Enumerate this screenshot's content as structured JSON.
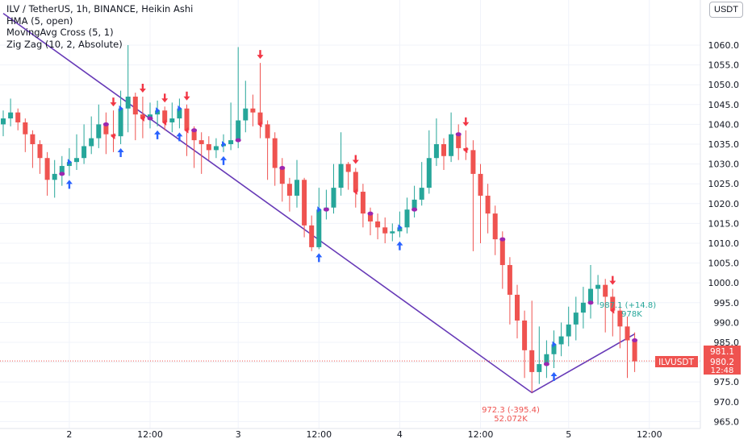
{
  "legend": {
    "title": "ILV / TetherUS, 1h, BINANCE, Heikin Ashi",
    "indicators": [
      "HMA (5, open)",
      "MovingAvg Cross (5, 1)",
      "Zig Zag (10, 2, Absolute)"
    ]
  },
  "currency": "USDT",
  "colors": {
    "up": "#26a69a",
    "down": "#ef5350",
    "zigzag": "#673ab7",
    "cross_up": "#2962ff",
    "cross_down": "#f23645",
    "hma": "#9c27b0",
    "grid": "#f0f3fa",
    "last_price_line": "#ef5350"
  },
  "price_axis": {
    "ticks": [
      "1060.0",
      "1055.0",
      "1050.0",
      "1045.0",
      "1040.0",
      "1035.0",
      "1030.0",
      "1025.0",
      "1020.0",
      "1015.0",
      "1010.0",
      "1005.0",
      "1000.0",
      "995.0",
      "990.0",
      "985.0",
      "980.0",
      "975.0",
      "970.0",
      "965.0"
    ]
  },
  "time_axis": {
    "ticks": [
      "2",
      "12:00",
      "3",
      "12:00",
      "4",
      "12:00",
      "5",
      "12:00"
    ]
  },
  "price_badge": {
    "high": "981.1",
    "price": "980.2",
    "countdown": "12:48",
    "symbol": "ILVUSDT"
  },
  "zigzag_labels": {
    "low_price": "972.3 (-395.4)",
    "low_volume": "52.072K",
    "high_price": "987.1 (+14.8)",
    "high_volume": "978K"
  },
  "chart_data": {
    "type": "candlestick",
    "symbol": "ILV / TetherUS",
    "interval": "1h",
    "exchange": "BINANCE",
    "style": "Heikin Ashi",
    "ylim": [
      963,
      1068
    ],
    "x_tick_labels": [
      "2",
      "12:00",
      "3",
      "12:00",
      "4",
      "12:00",
      "5",
      "12:00"
    ],
    "candles": [
      {
        "o": 1040.0,
        "c": 1041.5,
        "h": 1043.5,
        "l": 1037.0
      },
      {
        "o": 1041.5,
        "c": 1043.0,
        "h": 1046.5,
        "l": 1039.5
      },
      {
        "o": 1043.0,
        "c": 1040.5,
        "h": 1044.0,
        "l": 1038.5
      },
      {
        "o": 1040.5,
        "c": 1037.5,
        "h": 1041.5,
        "l": 1033.0
      },
      {
        "o": 1037.5,
        "c": 1035.0,
        "h": 1038.5,
        "l": 1029.0
      },
      {
        "o": 1035.0,
        "c": 1031.5,
        "h": 1036.0,
        "l": 1027.5
      },
      {
        "o": 1031.5,
        "c": 1026.0,
        "h": 1033.0,
        "l": 1022.0
      },
      {
        "o": 1026.0,
        "c": 1027.5,
        "h": 1031.0,
        "l": 1021.5
      },
      {
        "o": 1027.5,
        "c": 1029.5,
        "h": 1032.0,
        "l": 1024.5
      },
      {
        "o": 1029.5,
        "c": 1030.5,
        "h": 1034.0,
        "l": 1027.0
      },
      {
        "o": 1030.5,
        "c": 1031.5,
        "h": 1037.5,
        "l": 1028.5
      },
      {
        "o": 1031.5,
        "c": 1034.5,
        "h": 1040.0,
        "l": 1030.0
      },
      {
        "o": 1034.5,
        "c": 1036.5,
        "h": 1042.0,
        "l": 1032.5
      },
      {
        "o": 1036.5,
        "c": 1040.0,
        "h": 1045.0,
        "l": 1034.0
      },
      {
        "o": 1040.0,
        "c": 1037.5,
        "h": 1043.0,
        "l": 1032.5
      },
      {
        "o": 1037.5,
        "c": 1037.0,
        "h": 1043.5,
        "l": 1033.0
      },
      {
        "o": 1037.0,
        "c": 1044.0,
        "h": 1048.5,
        "l": 1035.0
      },
      {
        "o": 1044.0,
        "c": 1047.0,
        "h": 1060.0,
        "l": 1038.0
      },
      {
        "o": 1047.0,
        "c": 1042.5,
        "h": 1048.0,
        "l": 1036.0
      },
      {
        "o": 1042.5,
        "c": 1041.5,
        "h": 1047.0,
        "l": 1036.5
      },
      {
        "o": 1041.5,
        "c": 1042.5,
        "h": 1045.5,
        "l": 1039.0
      },
      {
        "o": 1042.5,
        "c": 1043.5,
        "h": 1046.0,
        "l": 1039.5
      },
      {
        "o": 1043.5,
        "c": 1040.5,
        "h": 1044.5,
        "l": 1038.5
      },
      {
        "o": 1040.5,
        "c": 1041.5,
        "h": 1045.5,
        "l": 1038.0
      },
      {
        "o": 1041.5,
        "c": 1044.0,
        "h": 1046.5,
        "l": 1039.0
      },
      {
        "o": 1044.0,
        "c": 1038.5,
        "h": 1045.0,
        "l": 1032.0
      },
      {
        "o": 1038.5,
        "c": 1036.0,
        "h": 1039.5,
        "l": 1029.0
      },
      {
        "o": 1036.0,
        "c": 1035.0,
        "h": 1038.0,
        "l": 1027.5
      },
      {
        "o": 1035.0,
        "c": 1033.5,
        "h": 1037.0,
        "l": 1031.0
      },
      {
        "o": 1033.5,
        "c": 1034.5,
        "h": 1036.5,
        "l": 1031.5
      },
      {
        "o": 1034.5,
        "c": 1035.0,
        "h": 1037.5,
        "l": 1033.0
      },
      {
        "o": 1035.0,
        "c": 1036.0,
        "h": 1045.5,
        "l": 1033.5
      },
      {
        "o": 1036.0,
        "c": 1041.0,
        "h": 1059.5,
        "l": 1034.0
      },
      {
        "o": 1041.0,
        "c": 1044.0,
        "h": 1051.0,
        "l": 1038.0
      },
      {
        "o": 1044.0,
        "c": 1043.0,
        "h": 1047.5,
        "l": 1039.5
      },
      {
        "o": 1043.0,
        "c": 1040.0,
        "h": 1055.5,
        "l": 1036.5
      },
      {
        "o": 1040.0,
        "c": 1036.5,
        "h": 1041.0,
        "l": 1026.0
      },
      {
        "o": 1036.5,
        "c": 1029.0,
        "h": 1038.0,
        "l": 1024.5
      },
      {
        "o": 1029.0,
        "c": 1025.0,
        "h": 1031.5,
        "l": 1020.5
      },
      {
        "o": 1025.0,
        "c": 1022.0,
        "h": 1026.5,
        "l": 1018.0
      },
      {
        "o": 1022.0,
        "c": 1026.0,
        "h": 1031.0,
        "l": 1019.0
      },
      {
        "o": 1026.0,
        "c": 1014.5,
        "h": 1026.5,
        "l": 1011.5
      },
      {
        "o": 1014.5,
        "c": 1009.0,
        "h": 1017.0,
        "l": 1008.0
      },
      {
        "o": 1009.0,
        "c": 1018.5,
        "h": 1024.0,
        "l": 1008.5
      },
      {
        "o": 1018.5,
        "c": 1019.0,
        "h": 1023.5,
        "l": 1016.0
      },
      {
        "o": 1019.0,
        "c": 1024.0,
        "h": 1030.0,
        "l": 1017.5
      },
      {
        "o": 1024.0,
        "c": 1030.0,
        "h": 1038.0,
        "l": 1022.0
      },
      {
        "o": 1030.0,
        "c": 1028.0,
        "h": 1030.5,
        "l": 1023.5
      },
      {
        "o": 1028.0,
        "c": 1023.0,
        "h": 1029.0,
        "l": 1019.0
      },
      {
        "o": 1023.0,
        "c": 1017.5,
        "h": 1025.0,
        "l": 1014.0
      },
      {
        "o": 1017.5,
        "c": 1015.5,
        "h": 1019.0,
        "l": 1012.0
      },
      {
        "o": 1015.5,
        "c": 1014.0,
        "h": 1017.5,
        "l": 1011.0
      },
      {
        "o": 1014.0,
        "c": 1012.5,
        "h": 1016.5,
        "l": 1010.0
      },
      {
        "o": 1012.5,
        "c": 1013.0,
        "h": 1015.0,
        "l": 1010.5
      },
      {
        "o": 1013.0,
        "c": 1014.0,
        "h": 1018.0,
        "l": 1011.5
      },
      {
        "o": 1014.0,
        "c": 1018.5,
        "h": 1021.5,
        "l": 1012.5
      },
      {
        "o": 1018.5,
        "c": 1021.0,
        "h": 1024.5,
        "l": 1016.5
      },
      {
        "o": 1021.0,
        "c": 1024.0,
        "h": 1030.5,
        "l": 1019.5
      },
      {
        "o": 1024.0,
        "c": 1031.5,
        "h": 1038.5,
        "l": 1022.5
      },
      {
        "o": 1031.5,
        "c": 1035.0,
        "h": 1041.5,
        "l": 1029.5
      },
      {
        "o": 1035.0,
        "c": 1032.0,
        "h": 1036.5,
        "l": 1028.5
      },
      {
        "o": 1032.0,
        "c": 1037.5,
        "h": 1043.0,
        "l": 1030.5
      },
      {
        "o": 1037.5,
        "c": 1034.0,
        "h": 1040.0,
        "l": 1031.0
      },
      {
        "o": 1034.0,
        "c": 1033.5,
        "h": 1038.5,
        "l": 1031.0
      },
      {
        "o": 1033.5,
        "c": 1027.5,
        "h": 1036.0,
        "l": 1008.0
      },
      {
        "o": 1027.5,
        "c": 1022.0,
        "h": 1030.0,
        "l": 1010.0
      },
      {
        "o": 1022.0,
        "c": 1017.5,
        "h": 1025.0,
        "l": 1012.5
      },
      {
        "o": 1017.5,
        "c": 1011.0,
        "h": 1019.5,
        "l": 1007.0
      },
      {
        "o": 1011.0,
        "c": 1004.5,
        "h": 1013.0,
        "l": 998.5
      },
      {
        "o": 1004.5,
        "c": 997.0,
        "h": 1006.5,
        "l": 989.5
      },
      {
        "o": 997.0,
        "c": 990.5,
        "h": 999.5,
        "l": 986.0
      },
      {
        "o": 990.5,
        "c": 983.0,
        "h": 993.0,
        "l": 976.0
      },
      {
        "o": 983.0,
        "c": 977.5,
        "h": 995.5,
        "l": 972.3
      },
      {
        "o": 977.5,
        "c": 979.5,
        "h": 989.0,
        "l": 974.5
      },
      {
        "o": 979.5,
        "c": 982.0,
        "h": 985.5,
        "l": 976.0
      },
      {
        "o": 982.0,
        "c": 984.5,
        "h": 988.0,
        "l": 978.5
      },
      {
        "o": 984.5,
        "c": 986.5,
        "h": 990.0,
        "l": 981.5
      },
      {
        "o": 986.5,
        "c": 989.5,
        "h": 994.0,
        "l": 984.0
      },
      {
        "o": 989.5,
        "c": 992.5,
        "h": 996.5,
        "l": 985.5
      },
      {
        "o": 992.5,
        "c": 995.0,
        "h": 999.0,
        "l": 988.5
      },
      {
        "o": 995.0,
        "c": 998.5,
        "h": 1004.5,
        "l": 991.0
      },
      {
        "o": 998.5,
        "c": 999.5,
        "h": 1002.0,
        "l": 994.5
      },
      {
        "o": 999.5,
        "c": 996.5,
        "h": 1001.0,
        "l": 987.5
      },
      {
        "o": 996.5,
        "c": 993.0,
        "h": 998.5,
        "l": 986.5
      },
      {
        "o": 993.0,
        "c": 989.0,
        "h": 995.0,
        "l": 983.5
      },
      {
        "o": 989.0,
        "c": 985.5,
        "h": 991.5,
        "l": 976.0
      },
      {
        "o": 985.5,
        "c": 980.2,
        "h": 987.5,
        "l": 977.5
      }
    ],
    "zigzag": [
      {
        "index": 0,
        "price": 1068.0
      },
      {
        "index": 72,
        "price": 972.3
      },
      {
        "index": 86,
        "price": 987.1
      }
    ],
    "last_price": 980.2
  }
}
